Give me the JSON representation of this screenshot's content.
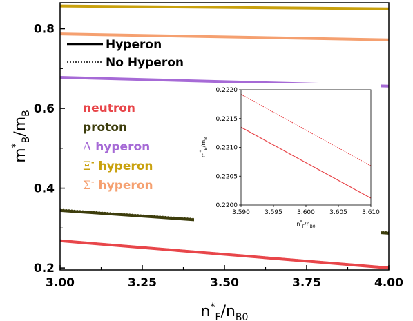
{
  "chart_data": [
    {
      "type": "line",
      "xlabel": {
        "base": "n",
        "sup": "*",
        "sub": "F",
        "rest": "/n",
        "sub2": "B0"
      },
      "ylabel": {
        "base": "m",
        "sup": "*",
        "sub": "B",
        "rest": "/m",
        "sub2": "B"
      },
      "xlim": [
        3.0,
        4.0
      ],
      "ylim": [
        0.195,
        0.865
      ],
      "xticks": [
        3.0,
        3.25,
        3.5,
        3.75,
        4.0
      ],
      "xtick_labels": [
        "3.00",
        "3.25",
        "3.50",
        "3.75",
        "4.00"
      ],
      "yticks": [
        0.2,
        0.4,
        0.6,
        0.8
      ],
      "ytick_labels": [
        "0.2",
        "0.4",
        "0.6",
        "0.8"
      ],
      "legend": {
        "placement": "top-left",
        "entries": [
          {
            "label": "Hyperon",
            "style": "solid"
          },
          {
            "label": "No Hyperon",
            "style": "dotted"
          }
        ]
      },
      "series_labels": [
        {
          "text": "neutron",
          "color": "#e8464a"
        },
        {
          "text": "proton",
          "color": "#3d3d0c"
        },
        {
          "greek": "Λ",
          "text": " hyperon",
          "color": "#a66ad6"
        },
        {
          "greek": "Ξ",
          "sup": "-",
          "text": " hyperon",
          "color": "#c9a10d"
        },
        {
          "greek": "Σ",
          "sup": "-",
          "text": " hyperon",
          "color": "#f5a070"
        }
      ],
      "series": [
        {
          "color": "#e8464a",
          "style": "solid",
          "x": [
            3.0,
            4.0
          ],
          "y": [
            0.268,
            0.2
          ]
        },
        {
          "color": "#e8464a",
          "style": "dotted",
          "x": [
            3.0,
            4.0
          ],
          "y": [
            0.27,
            0.202
          ]
        },
        {
          "color": "#3d3d0c",
          "style": "solid",
          "x": [
            3.0,
            4.0
          ],
          "y": [
            0.344,
            0.287
          ]
        },
        {
          "color": "#3d3d0c",
          "style": "dotted",
          "x": [
            3.0,
            4.0
          ],
          "y": [
            0.347,
            0.29
          ]
        },
        {
          "color": "#a66ad6",
          "style": "solid",
          "x": [
            3.0,
            4.0
          ],
          "y": [
            0.678,
            0.656
          ]
        },
        {
          "color": "#c9a10d",
          "style": "solid",
          "x": [
            3.0,
            4.0
          ],
          "y": [
            0.857,
            0.85
          ]
        },
        {
          "color": "#f5a070",
          "style": "solid",
          "x": [
            3.0,
            4.0
          ],
          "y": [
            0.787,
            0.772
          ]
        }
      ]
    },
    {
      "type": "line",
      "placement": "inset",
      "xlabel": {
        "base": "n",
        "sup": "*",
        "sub": "F",
        "rest": "/n",
        "sub2": "B0"
      },
      "ylabel": {
        "base": "m",
        "sup": "*",
        "sub": "B",
        "rest": "/m",
        "sub2": "B"
      },
      "xlim": [
        3.59,
        3.61
      ],
      "ylim": [
        0.22,
        0.222
      ],
      "xticks": [
        3.59,
        3.595,
        3.6,
        3.605,
        3.61
      ],
      "xtick_labels": [
        "3.590",
        "3.595",
        "3.600",
        "3.605",
        "3.610"
      ],
      "yticks": [
        0.22,
        0.2205,
        0.221,
        0.2215,
        0.222
      ],
      "ytick_labels": [
        "0.2200",
        "0.2205",
        "0.2210",
        "0.2215",
        "0.2220"
      ],
      "series": [
        {
          "color": "#e8464a",
          "style": "solid",
          "x": [
            3.59,
            3.61
          ],
          "y": [
            0.22135,
            0.22012
          ]
        },
        {
          "color": "#e8464a",
          "style": "dotted",
          "x": [
            3.59,
            3.61
          ],
          "y": [
            0.22192,
            0.22068
          ]
        }
      ]
    }
  ]
}
